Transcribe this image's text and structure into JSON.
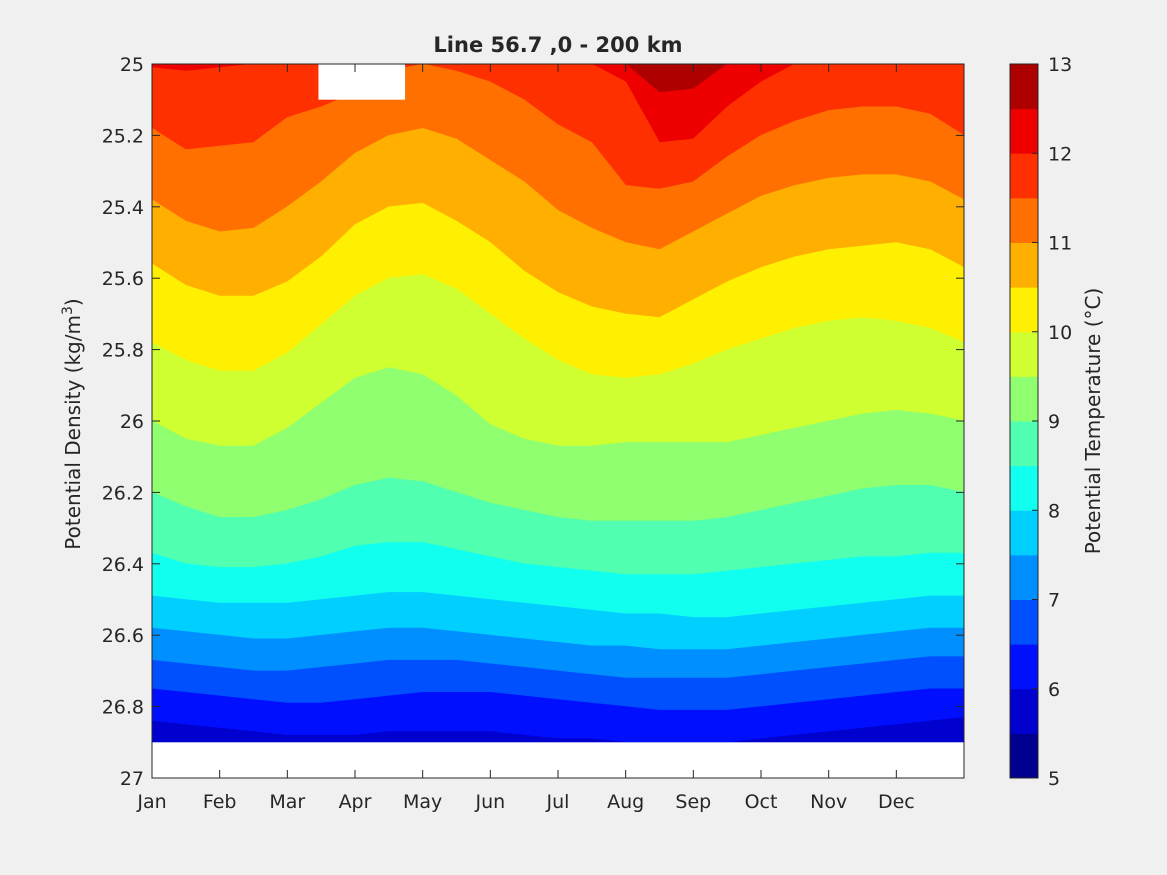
{
  "chart_data": {
    "type": "contourf",
    "title": "Line 56.7 ,0 - 200 km",
    "xlabel": "",
    "ylabel": {
      "main": "Potential Density (kg/m",
      "sup": "3",
      "tail": ")"
    },
    "x_ticks": [
      "Jan",
      "Feb",
      "Mar",
      "Apr",
      "May",
      "Jun",
      "Jul",
      "Aug",
      "Sep",
      "Oct",
      "Nov",
      "Dec"
    ],
    "x_tick_months": [
      0,
      1,
      2,
      3,
      4,
      5,
      6,
      7,
      8,
      9,
      10,
      11
    ],
    "xlim": [
      0,
      12
    ],
    "ylim": [
      25,
      27
    ],
    "y_reversed": true,
    "y_ticks": [
      "25",
      "25.2",
      "25.4",
      "25.6",
      "25.8",
      "26",
      "26.2",
      "26.4",
      "26.6",
      "26.8",
      "27"
    ],
    "y_tick_values": [
      25,
      25.2,
      25.4,
      25.6,
      25.8,
      26,
      26.2,
      26.4,
      26.6,
      26.8,
      27
    ],
    "colorbar": {
      "label": "Potential Temperature (°C)",
      "range": [
        5,
        13
      ],
      "ticks": [
        "5",
        "6",
        "7",
        "8",
        "9",
        "10",
        "11",
        "12",
        "13"
      ],
      "tick_values": [
        5,
        6,
        7,
        8,
        9,
        10,
        11,
        12,
        13
      ]
    },
    "levels": [
      5,
      5.5,
      6,
      6.5,
      7,
      7.5,
      8,
      8.5,
      9,
      9.5,
      10,
      10.5,
      11,
      11.5,
      12,
      12.5,
      13
    ],
    "colors": [
      "#00008f",
      "#0000cf",
      "#0010ff",
      "#0050ff",
      "#008fff",
      "#00cfff",
      "#10ffef",
      "#50ffaf",
      "#8fff70",
      "#cfff30",
      "#ffef00",
      "#ffaf00",
      "#ff7000",
      "#ff3000",
      "#ef0000",
      "#af0000"
    ],
    "x_months": [
      0,
      0.5,
      1,
      1.5,
      2,
      2.5,
      3,
      3.5,
      4,
      4.5,
      5,
      5.5,
      6,
      6.5,
      7,
      7.5,
      8,
      8.5,
      9,
      9.5,
      10,
      10.5,
      11,
      11.5,
      12
    ],
    "isopycnal_depth_of_isotherm": [
      {
        "isotherm": 12.5,
        "sigma": [
          25.0,
          25.0,
          25.0,
          25.0,
          25.0,
          25.0,
          25.0,
          25.0,
          25.0,
          25.0,
          25.0,
          25.0,
          25.0,
          25.0,
          25.0,
          25.08,
          25.07,
          25.0,
          25.0,
          25.0,
          25.0,
          25.0,
          25.0,
          25.0,
          25.0
        ]
      },
      {
        "isotherm": 12.0,
        "sigma": [
          25.01,
          25.02,
          25.01,
          25.0,
          25.0,
          25.0,
          25.0,
          25.0,
          25.0,
          25.0,
          25.0,
          25.0,
          25.0,
          25.0,
          25.05,
          25.22,
          25.21,
          25.12,
          25.05,
          25.0,
          25.0,
          25.0,
          25.0,
          25.0,
          25.0
        ]
      },
      {
        "isotherm": 11.5,
        "sigma": [
          25.18,
          25.24,
          25.23,
          25.22,
          25.15,
          25.12,
          25.08,
          25.02,
          25.0,
          25.02,
          25.05,
          25.1,
          25.17,
          25.22,
          25.34,
          25.35,
          25.33,
          25.26,
          25.2,
          25.16,
          25.13,
          25.12,
          25.12,
          25.14,
          25.2
        ]
      },
      {
        "isotherm": 11.0,
        "sigma": [
          25.38,
          25.44,
          25.47,
          25.46,
          25.4,
          25.33,
          25.25,
          25.2,
          25.18,
          25.21,
          25.27,
          25.33,
          25.41,
          25.46,
          25.5,
          25.52,
          25.47,
          25.42,
          25.37,
          25.34,
          25.32,
          25.31,
          25.31,
          25.33,
          25.38
        ]
      },
      {
        "isotherm": 10.5,
        "sigma": [
          25.56,
          25.62,
          25.65,
          25.65,
          25.61,
          25.54,
          25.45,
          25.4,
          25.39,
          25.44,
          25.5,
          25.58,
          25.64,
          25.68,
          25.7,
          25.71,
          25.66,
          25.61,
          25.57,
          25.54,
          25.52,
          25.51,
          25.5,
          25.52,
          25.57
        ]
      },
      {
        "isotherm": 10.0,
        "sigma": [
          25.78,
          25.83,
          25.86,
          25.86,
          25.81,
          25.73,
          25.65,
          25.6,
          25.59,
          25.63,
          25.7,
          25.77,
          25.83,
          25.87,
          25.88,
          25.87,
          25.84,
          25.8,
          25.77,
          25.74,
          25.72,
          25.71,
          25.72,
          25.74,
          25.78
        ]
      },
      {
        "isotherm": 9.5,
        "sigma": [
          26.0,
          26.05,
          26.07,
          26.07,
          26.02,
          25.95,
          25.88,
          25.85,
          25.87,
          25.93,
          26.01,
          26.05,
          26.07,
          26.07,
          26.06,
          26.06,
          26.06,
          26.06,
          26.04,
          26.02,
          26.0,
          25.98,
          25.97,
          25.98,
          26.0
        ]
      },
      {
        "isotherm": 9.0,
        "sigma": [
          26.2,
          26.24,
          26.27,
          26.27,
          26.25,
          26.22,
          26.18,
          26.16,
          26.17,
          26.2,
          26.23,
          26.25,
          26.27,
          26.28,
          26.28,
          26.28,
          26.28,
          26.27,
          26.25,
          26.23,
          26.21,
          26.19,
          26.18,
          26.18,
          26.2
        ]
      },
      {
        "isotherm": 8.5,
        "sigma": [
          26.37,
          26.4,
          26.41,
          26.41,
          26.4,
          26.38,
          26.35,
          26.34,
          26.34,
          26.36,
          26.38,
          26.4,
          26.41,
          26.42,
          26.43,
          26.43,
          26.43,
          26.42,
          26.41,
          26.4,
          26.39,
          26.38,
          26.38,
          26.37,
          26.37
        ]
      },
      {
        "isotherm": 8.0,
        "sigma": [
          26.49,
          26.5,
          26.51,
          26.51,
          26.51,
          26.5,
          26.49,
          26.48,
          26.48,
          26.49,
          26.5,
          26.51,
          26.52,
          26.53,
          26.54,
          26.54,
          26.55,
          26.55,
          26.54,
          26.53,
          26.52,
          26.51,
          26.5,
          26.49,
          26.49
        ]
      },
      {
        "isotherm": 7.5,
        "sigma": [
          26.58,
          26.59,
          26.6,
          26.61,
          26.61,
          26.6,
          26.59,
          26.58,
          26.58,
          26.59,
          26.6,
          26.61,
          26.62,
          26.63,
          26.63,
          26.64,
          26.64,
          26.64,
          26.63,
          26.62,
          26.61,
          26.6,
          26.59,
          26.58,
          26.58
        ]
      },
      {
        "isotherm": 7.0,
        "sigma": [
          26.67,
          26.68,
          26.69,
          26.7,
          26.7,
          26.69,
          26.68,
          26.67,
          26.67,
          26.67,
          26.68,
          26.69,
          26.7,
          26.71,
          26.72,
          26.72,
          26.72,
          26.72,
          26.71,
          26.7,
          26.69,
          26.68,
          26.67,
          26.66,
          26.66
        ]
      },
      {
        "isotherm": 6.5,
        "sigma": [
          26.75,
          26.76,
          26.77,
          26.78,
          26.79,
          26.79,
          26.78,
          26.77,
          26.76,
          26.76,
          26.76,
          26.77,
          26.78,
          26.79,
          26.8,
          26.81,
          26.81,
          26.81,
          26.8,
          26.79,
          26.78,
          26.77,
          26.76,
          26.75,
          26.75
        ]
      },
      {
        "isotherm": 6.0,
        "sigma": [
          26.84,
          26.85,
          26.86,
          26.87,
          26.88,
          26.88,
          26.88,
          26.87,
          26.87,
          26.87,
          26.87,
          26.88,
          26.89,
          26.89,
          26.9,
          26.9,
          26.9,
          26.9,
          26.89,
          26.88,
          26.87,
          26.86,
          26.85,
          26.84,
          26.83
        ]
      }
    ],
    "no_data": [
      {
        "region": "top gap",
        "months": [
          2.46,
          3.74
        ],
        "sigma": [
          25.0,
          25.1
        ]
      },
      {
        "region": "bottom",
        "months": [
          0,
          12
        ],
        "sigma": [
          26.9,
          27.0
        ]
      }
    ]
  }
}
